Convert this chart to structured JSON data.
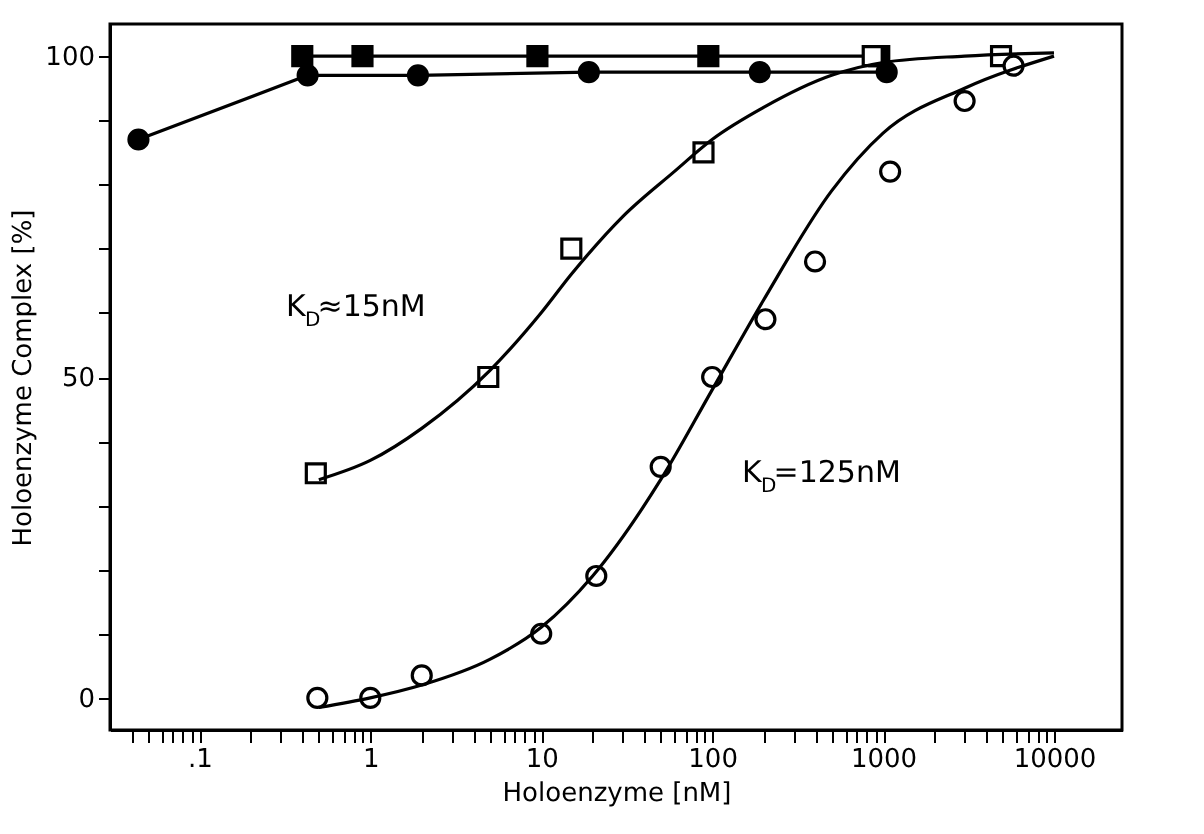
{
  "chart_data": {
    "type": "line",
    "xlabel": "Holoenzyme [nM]",
    "ylabel": "Holoenzyme Complex [%]",
    "log": "x",
    "xlim": [
      0.03,
      25000
    ],
    "ylim": [
      -5,
      105
    ],
    "xticks": [
      {
        "value": 0.1,
        "label": ".1"
      },
      1,
      10,
      100,
      1000,
      10000,
      {
        "value": 0.04,
        "label": null
      },
      {
        "value": 0.05,
        "label": null
      },
      {
        "value": 0.06,
        "label": null
      },
      {
        "value": 0.07,
        "label": null
      },
      {
        "value": 0.08,
        "label": null
      },
      {
        "value": 0.09,
        "label": null
      },
      {
        "value": 0.2,
        "label": null
      },
      {
        "value": 0.3,
        "label": null
      },
      {
        "value": 0.4,
        "label": null
      },
      {
        "value": 0.5,
        "label": null
      },
      {
        "value": 0.6,
        "label": null
      },
      {
        "value": 0.7,
        "label": null
      },
      {
        "value": 0.8,
        "label": null
      },
      {
        "value": 0.9,
        "label": null
      },
      {
        "value": 2,
        "label": null
      },
      {
        "value": 3,
        "label": null
      },
      {
        "value": 4,
        "label": null
      },
      {
        "value": 5,
        "label": null
      },
      {
        "value": 6,
        "label": null
      },
      {
        "value": 7,
        "label": null
      },
      {
        "value": 8,
        "label": null
      },
      {
        "value": 9,
        "label": null
      },
      {
        "value": 20,
        "label": null
      },
      {
        "value": 30,
        "label": null
      },
      {
        "value": 40,
        "label": null
      },
      {
        "value": 50,
        "label": null
      },
      {
        "value": 60,
        "label": null
      },
      {
        "value": 70,
        "label": null
      },
      {
        "value": 80,
        "label": null
      },
      {
        "value": 90,
        "label": null
      },
      {
        "value": 200,
        "label": null
      },
      {
        "value": 300,
        "label": null
      },
      {
        "value": 400,
        "label": null
      },
      {
        "value": 500,
        "label": null
      },
      {
        "value": 600,
        "label": null
      },
      {
        "value": 700,
        "label": null
      },
      {
        "value": 800,
        "label": null
      },
      {
        "value": 900,
        "label": null
      },
      {
        "value": 2000,
        "label": null
      },
      {
        "value": 3000,
        "label": null
      },
      {
        "value": 4000,
        "label": null
      },
      {
        "value": 5000,
        "label": null
      },
      {
        "value": 6000,
        "label": null
      },
      {
        "value": 7000,
        "label": null
      },
      {
        "value": 8000,
        "label": null
      },
      {
        "value": 9000,
        "label": null
      }
    ],
    "yticks": [
      0,
      {
        "value": 10,
        "label": null
      },
      {
        "value": 20,
        "label": null
      },
      {
        "value": 30,
        "label": null
      },
      {
        "value": 40,
        "label": null
      },
      50,
      {
        "value": 60,
        "label": null
      },
      {
        "value": 70,
        "label": null
      },
      {
        "value": 80,
        "label": null
      },
      {
        "value": 90,
        "label": null
      },
      100
    ],
    "grid": false,
    "series": [
      {
        "marker": "square",
        "color": "#000000",
        "x": [
          0.4,
          0.9,
          9.5,
          95,
          950
        ],
        "values": [
          100,
          100,
          100,
          100,
          100
        ]
      },
      {
        "marker": "circle",
        "color": "#000000",
        "x": [
          0.044,
          0.43,
          1.9,
          19,
          190,
          1050
        ],
        "values": [
          87,
          97,
          97,
          97.5,
          97.5,
          97.5
        ]
      },
      {
        "type": "scatter",
        "marker": "square",
        "color": "#000000",
        "x": [
          0.48,
          4.9,
          15,
          89,
          870,
          4900
        ],
        "values": [
          35,
          50,
          70,
          85,
          100,
          100
        ]
      },
      {
        "type": "scatter",
        "marker": "circle",
        "color": "#000000",
        "x": [
          0.49,
          1,
          2,
          10,
          21,
          50,
          100,
          205,
          400,
          1100,
          3000,
          5800
        ],
        "values": [
          0,
          0,
          3.5,
          10,
          19,
          36,
          50,
          59,
          68,
          82,
          93,
          98.5
        ]
      },
      {
        "marker": "none",
        "color": "#000000",
        "x": [
          0.5,
          1,
          2,
          5,
          10,
          15,
          30,
          60,
          100,
          200,
          500,
          1000,
          3000,
          10000
        ],
        "values": [
          34,
          37,
          42,
          51,
          60,
          66,
          75,
          82,
          87,
          92,
          97,
          99,
          100,
          100.5
        ]
      },
      {
        "marker": "none",
        "color": "#000000",
        "x": [
          0.5,
          1,
          2,
          5,
          10,
          20,
          50,
          100,
          200,
          500,
          1000,
          3000,
          10000
        ],
        "values": [
          -1.5,
          0,
          2,
          6,
          11,
          19,
          34,
          48,
          62,
          79,
          88,
          95,
          100
        ]
      }
    ],
    "annotations": [
      "K$_{D}$≈15nM",
      "K$_{D}$=125nM"
    ]
  }
}
